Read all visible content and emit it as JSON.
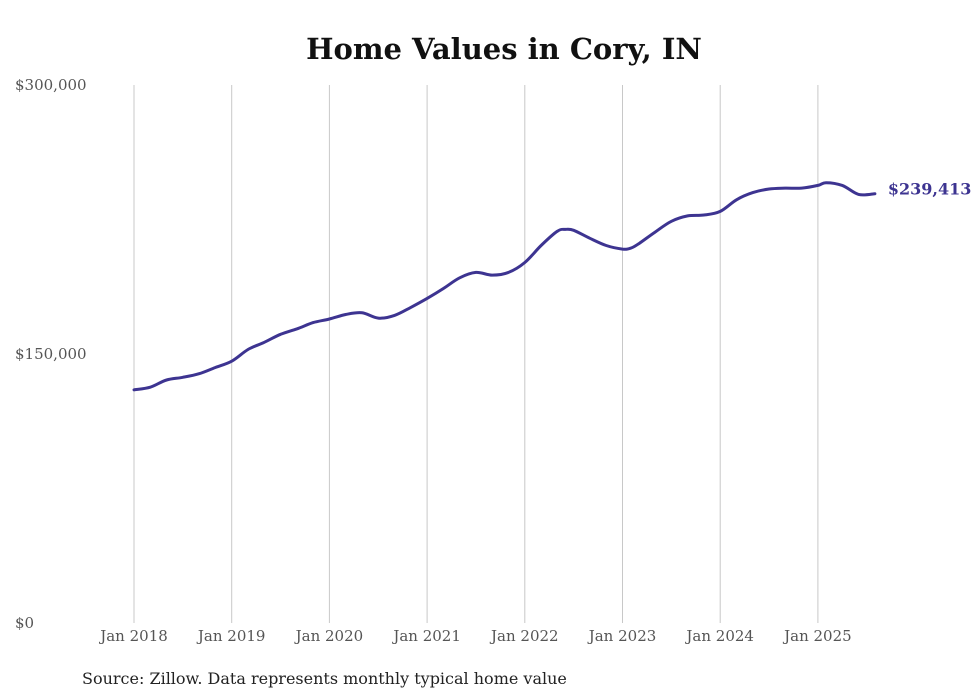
{
  "chart_data": {
    "type": "line",
    "title": "Home Values in Cory, IN",
    "source": "Source: Zillow. Data represents monthly typical home value",
    "ylim": [
      0,
      300000
    ],
    "y_ticks": [
      {
        "value": 0,
        "label": "$0"
      },
      {
        "value": 150000,
        "label": "$150,000"
      },
      {
        "value": 300000,
        "label": "$300,000"
      }
    ],
    "x_ticks": [
      {
        "value": "2018-01",
        "label": "Jan 2018"
      },
      {
        "value": "2019-01",
        "label": "Jan 2019"
      },
      {
        "value": "2020-01",
        "label": "Jan 2020"
      },
      {
        "value": "2021-01",
        "label": "Jan 2021"
      },
      {
        "value": "2022-01",
        "label": "Jan 2022"
      },
      {
        "value": "2023-01",
        "label": "Jan 2023"
      },
      {
        "value": "2024-01",
        "label": "Jan 2024"
      },
      {
        "value": "2025-01",
        "label": "Jan 2025"
      }
    ],
    "xlim": [
      "2018-01",
      "2025-08"
    ],
    "grid": "vertical",
    "line_color": "#3d3491",
    "end_label": "$239,413",
    "series": [
      {
        "x": [
          "2018-01",
          "2018-03",
          "2018-05",
          "2018-07",
          "2018-09",
          "2018-11",
          "2019-01",
          "2019-03",
          "2019-05",
          "2019-07",
          "2019-09",
          "2019-11",
          "2020-01",
          "2020-03",
          "2020-05",
          "2020-07",
          "2020-09",
          "2020-11",
          "2021-01",
          "2021-03",
          "2021-05",
          "2021-07",
          "2021-09",
          "2021-11",
          "2022-01",
          "2022-03",
          "2022-05",
          "2022-06",
          "2022-07",
          "2022-09",
          "2022-11",
          "2023-01",
          "2023-02",
          "2023-03",
          "2023-05",
          "2023-07",
          "2023-09",
          "2023-11",
          "2024-01",
          "2024-03",
          "2024-05",
          "2024-07",
          "2024-09",
          "2024-11",
          "2025-01",
          "2025-02",
          "2025-04",
          "2025-06",
          "2025-08"
        ],
        "y": [
          130000,
          131500,
          135500,
          137000,
          139000,
          142500,
          146000,
          152500,
          156500,
          161000,
          164000,
          167500,
          169500,
          172000,
          173000,
          170000,
          171500,
          176000,
          181000,
          186500,
          192500,
          195500,
          194000,
          195500,
          201000,
          210500,
          218500,
          219500,
          219000,
          214500,
          210500,
          208500,
          209000,
          211500,
          218000,
          224000,
          227000,
          227500,
          229500,
          236000,
          240000,
          242000,
          242500,
          242500,
          244000,
          245500,
          244000,
          239000,
          239413
        ]
      }
    ]
  }
}
